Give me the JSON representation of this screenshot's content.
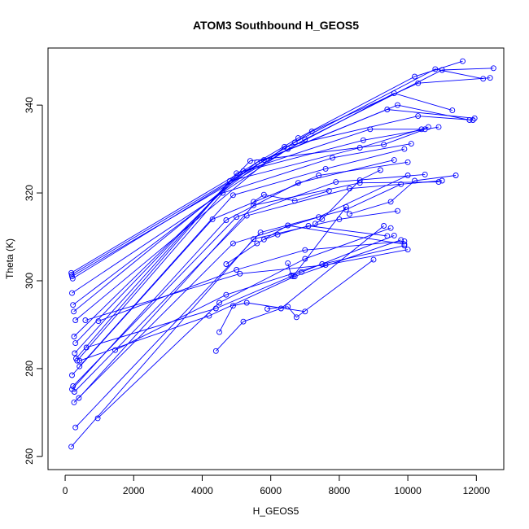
{
  "chart_data": {
    "type": "line",
    "title": "ATOM3 Southbound H_GEOS5",
    "xlabel": "H_GEOS5",
    "ylabel": "Theta (K)",
    "xlim": [
      -500,
      12800
    ],
    "ylim": [
      257,
      353
    ],
    "x_ticks": [
      0,
      2000,
      4000,
      6000,
      8000,
      10000,
      12000
    ],
    "y_ticks": [
      260,
      280,
      300,
      320,
      340
    ],
    "x_tick_labels": [
      "0",
      "2000",
      "4000",
      "6000",
      "8000",
      "10000",
      "12000"
    ],
    "y_tick_labels": [
      "260",
      "280",
      "300",
      "320",
      "340"
    ],
    "grid": false,
    "legend": "none",
    "series_color": "#0000ff",
    "marker": "open-circle",
    "series": [
      {
        "x": [
          180,
          6800,
          10200,
          11600
        ],
        "y": [
          301.8,
          332.5,
          346.5,
          350
        ]
      },
      {
        "x": [
          190,
          6700,
          10800,
          12200
        ],
        "y": [
          301.4,
          331.5,
          348.2,
          346
        ]
      },
      {
        "x": [
          200,
          7000,
          11000,
          12500
        ],
        "y": [
          301.0,
          332.2,
          348.0,
          348.4
        ]
      },
      {
        "x": [
          220,
          7200,
          10300,
          12400
        ],
        "y": [
          300.5,
          334.0,
          345.0,
          346.2
        ]
      },
      {
        "x": [
          200,
          6500,
          9600,
          11300
        ],
        "y": [
          297.2,
          330.0,
          342.7,
          338.8
        ]
      },
      {
        "x": [
          230,
          5800,
          9700,
          11800
        ],
        "y": [
          294.5,
          327.5,
          340.0,
          336.6
        ]
      },
      {
        "x": [
          250,
          5600,
          9400,
          11950
        ],
        "y": [
          293.0,
          327.0,
          339.0,
          337.0
        ]
      },
      {
        "x": [
          300,
          6400,
          10300,
          11900
        ],
        "y": [
          291.0,
          330.5,
          337.5,
          336.6
        ]
      },
      {
        "x": [
          260,
          5200,
          8900,
          10400
        ],
        "y": [
          287.3,
          325.0,
          334.5,
          334.5
        ]
      },
      {
        "x": [
          300,
          5400,
          9300,
          10500
        ],
        "y": [
          285.8,
          327.3,
          331.0,
          334.5
        ]
      },
      {
        "x": [
          280,
          4800,
          8600,
          10600
        ],
        "y": [
          283.5,
          322.7,
          330.3,
          335.0
        ]
      },
      {
        "x": [
          320,
          5000,
          8700,
          10900
        ],
        "y": [
          282.3,
          324.5,
          332.0,
          335.0
        ]
      },
      {
        "x": [
          350,
          4600,
          7800,
          10100
        ],
        "y": [
          281.8,
          320.0,
          328.0,
          331.2
        ]
      },
      {
        "x": [
          420,
          4900,
          7600,
          9900
        ],
        "y": [
          280.5,
          319.5,
          325.5,
          330.0
        ]
      },
      {
        "x": [
          200,
          4300,
          7400,
          10000
        ],
        "y": [
          278.5,
          314.0,
          324.0,
          327.0
        ]
      },
      {
        "x": [
          230,
          5000,
          7900,
          10500
        ],
        "y": [
          276.0,
          314.5,
          322.5,
          324.2
        ]
      },
      {
        "x": [
          200,
          4700,
          6800,
          9600
        ],
        "y": [
          275.3,
          313.8,
          322.3,
          327.5
        ]
      },
      {
        "x": [
          270,
          5300,
          8300,
          11000
        ],
        "y": [
          274.7,
          314.8,
          321.0,
          322.8
        ]
      },
      {
        "x": [
          400,
          5500,
          8600,
          10900
        ],
        "y": [
          273.3,
          317.2,
          322.3,
          322.5
        ]
      },
      {
        "x": [
          260,
          4900,
          7400,
          10000
        ],
        "y": [
          272.3,
          308.5,
          314.5,
          324.0
        ]
      },
      {
        "x": [
          300,
          5700,
          8200,
          9800
        ],
        "y": [
          266.6,
          311.0,
          316.2,
          322.0
        ]
      },
      {
        "x": [
          180,
          5500,
          8000,
          9700
        ],
        "y": [
          262.2,
          309.5,
          314.0,
          315.9
        ]
      },
      {
        "x": [
          950,
          4500,
          7000,
          9500
        ],
        "y": [
          268.7,
          295.0,
          305.0,
          312.0
        ]
      },
      {
        "x": [
          1460,
          4700,
          7500,
          9900
        ],
        "y": [
          284.2,
          296.8,
          303.8,
          308.0
        ]
      },
      {
        "x": [
          620,
          4400,
          6900,
          9600
        ],
        "y": [
          284.8,
          293.7,
          302.0,
          310.3
        ]
      },
      {
        "x": [
          420,
          4200,
          6700,
          9800
        ],
        "y": [
          281.8,
          292.0,
          301.0,
          309.3
        ]
      },
      {
        "x": [
          970,
          5000,
          7000,
          9900
        ],
        "y": [
          290.8,
          302.5,
          307.0,
          309.0
        ]
      },
      {
        "x": [
          590,
          5100,
          7600,
          10000
        ],
        "y": [
          291.0,
          301.6,
          303.6,
          307.1
        ]
      },
      {
        "x": [
          5800,
          6200,
          7100,
          9400
        ],
        "y": [
          309.4,
          310.5,
          312.5,
          310.2
        ]
      },
      {
        "x": [
          4700,
          5600,
          6500,
          9900
        ],
        "y": [
          303.8,
          308.5,
          312.6,
          308.3
        ]
      },
      {
        "x": [
          4400,
          5200,
          6300,
          9300
        ],
        "y": [
          284.0,
          290.7,
          293.7,
          312.5
        ]
      },
      {
        "x": [
          5900,
          6500,
          6750,
          9000
        ],
        "y": [
          293.6,
          294.1,
          291.7,
          304.8
        ]
      },
      {
        "x": [
          4500,
          4900,
          5300,
          7000
        ],
        "y": [
          288.3,
          294.3,
          295.0,
          293.0
        ]
      },
      {
        "x": [
          6500,
          6600,
          6650,
          8200
        ],
        "y": [
          304.0,
          301.2,
          301.0,
          316.8
        ]
      },
      {
        "x": [
          5500,
          5800,
          6700,
          7700
        ],
        "y": [
          318.0,
          319.6,
          318.2,
          320.5
        ]
      },
      {
        "x": [
          8300,
          9500,
          10200,
          11400
        ],
        "y": [
          315.2,
          318.0,
          322.8,
          324.0
        ]
      },
      {
        "x": [
          7300,
          7500,
          8600,
          9200
        ],
        "y": [
          313.0,
          314.0,
          322.9,
          325.2
        ]
      }
    ]
  }
}
